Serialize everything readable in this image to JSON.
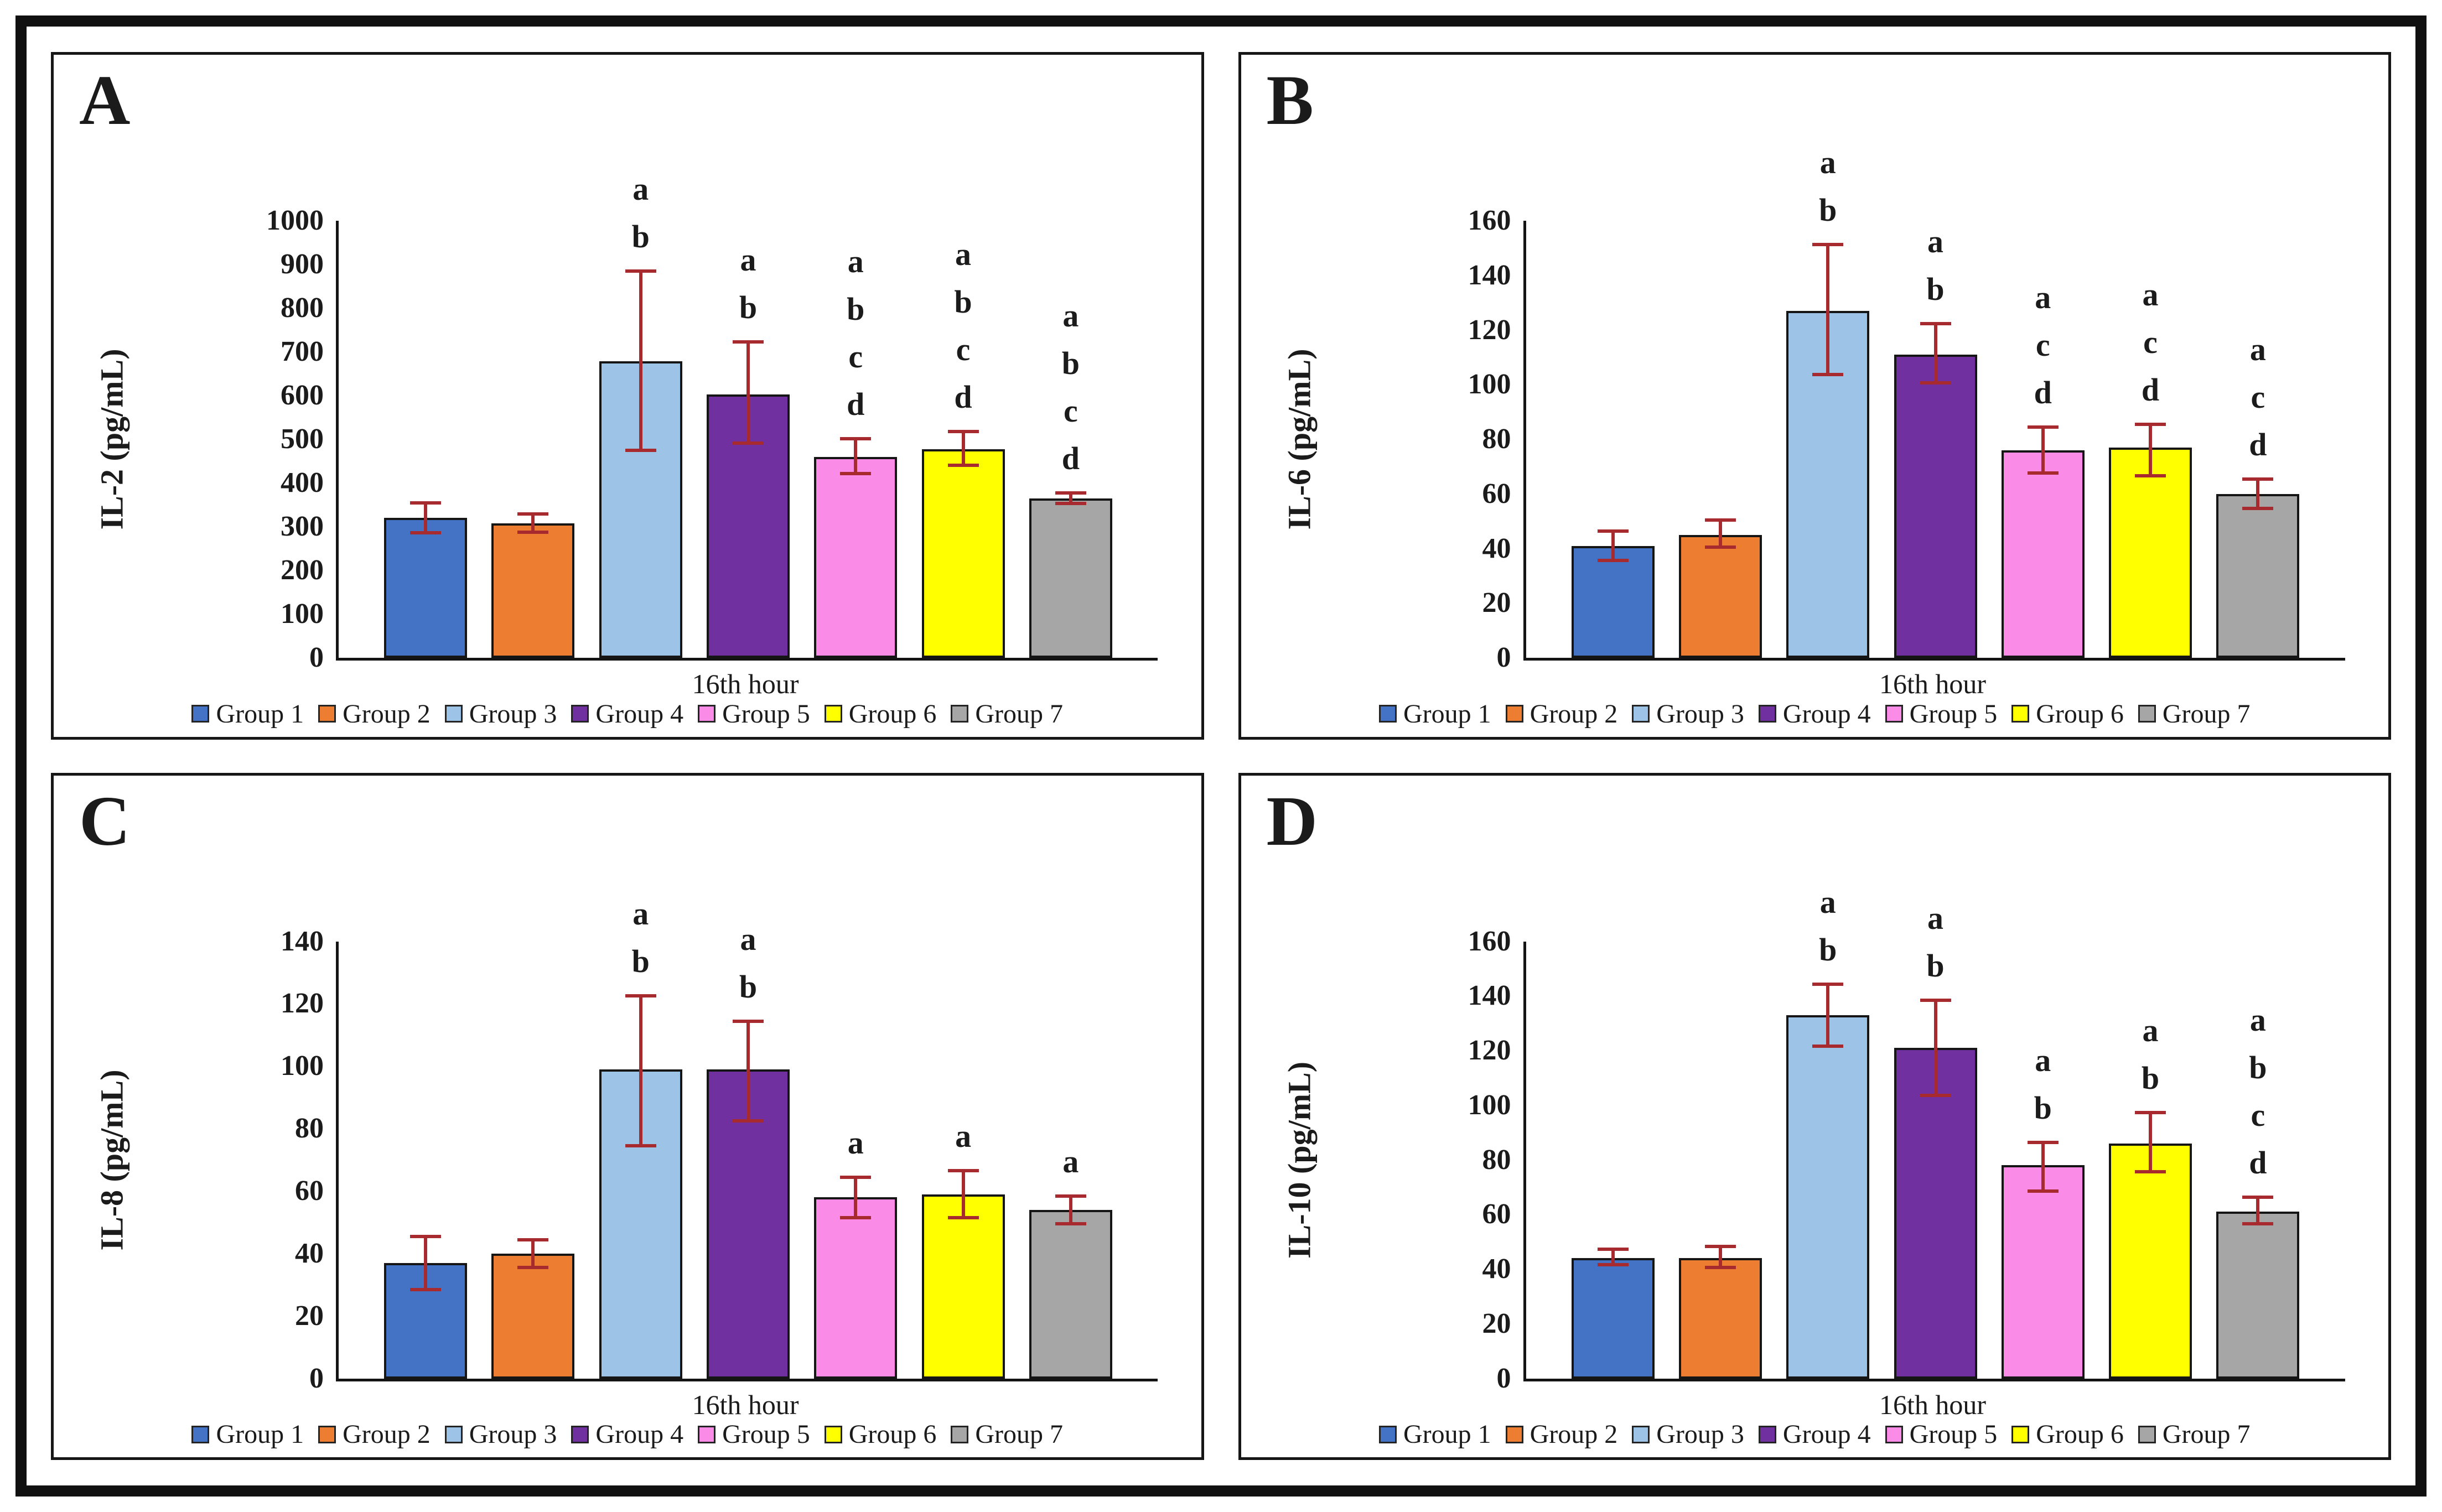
{
  "series_colors": [
    "#4472C4",
    "#ED7D31",
    "#9DC3E6",
    "#7030A0",
    "#FA8CE8",
    "#FFFF00",
    "#A6A6A6"
  ],
  "error_bar_color": "#A62A2E",
  "bar_border_color": "#151515",
  "chart_data": [
    {
      "type": "bar",
      "panel": "A",
      "ylabel": "IL-2 (pg/mL)",
      "xlabel": "16th hour",
      "ylim": [
        0,
        1000
      ],
      "ytick_step": 100,
      "grid": false,
      "legend_position": "bottom",
      "categories": [
        "Group 1",
        "Group 2",
        "Group 3",
        "Group 4",
        "Group 5",
        "Group 6",
        "Group 7"
      ],
      "values": [
        320,
        308,
        678,
        602,
        460,
        477,
        364
      ],
      "error_low": [
        282,
        283,
        471,
        487,
        418,
        437,
        349
      ],
      "error_high": [
        358,
        333,
        889,
        726,
        505,
        521,
        381
      ],
      "sig_letters": [
        [],
        [],
        [
          "a",
          "b"
        ],
        [
          "a",
          "b"
        ],
        [
          "a",
          "b",
          "c",
          "d"
        ],
        [
          "a",
          "b",
          "c",
          "d"
        ],
        [
          "a",
          "b",
          "c",
          "d"
        ]
      ]
    },
    {
      "type": "bar",
      "panel": "B",
      "ylabel": "IL-6 (pg/mL)",
      "xlabel": "16th hour",
      "ylim": [
        0,
        160
      ],
      "ytick_step": 20,
      "grid": false,
      "legend_position": "bottom",
      "categories": [
        "Group 1",
        "Group 2",
        "Group 3",
        "Group 4",
        "Group 5",
        "Group 6",
        "Group 7"
      ],
      "values": [
        41,
        45,
        127,
        111,
        76,
        77,
        60
      ],
      "error_low": [
        35,
        40,
        103,
        100,
        67,
        66,
        54
      ],
      "error_high": [
        47,
        51,
        152,
        123,
        85,
        86,
        66
      ],
      "sig_letters": [
        [],
        [],
        [
          "a",
          "b"
        ],
        [
          "a",
          "b"
        ],
        [
          "a",
          "c",
          "d"
        ],
        [
          "a",
          "c",
          "d"
        ],
        [
          "a",
          "c",
          "d"
        ]
      ]
    },
    {
      "type": "bar",
      "panel": "C",
      "ylabel": "IL-8 (pg/mL)",
      "xlabel": "16th hour",
      "ylim": [
        0,
        140
      ],
      "ytick_step": 20,
      "grid": false,
      "legend_position": "bottom",
      "categories": [
        "Group 1",
        "Group 2",
        "Group 3",
        "Group 4",
        "Group 5",
        "Group 6",
        "Group 7"
      ],
      "values": [
        37,
        40,
        99,
        99,
        58,
        59,
        54
      ],
      "error_low": [
        28,
        35,
        74,
        82,
        51,
        51,
        49
      ],
      "error_high": [
        46,
        45,
        123,
        115,
        65,
        67,
        59
      ],
      "sig_letters": [
        [],
        [],
        [
          "a",
          "b"
        ],
        [
          "a",
          "b"
        ],
        [
          "a"
        ],
        [
          "a"
        ],
        [
          "a"
        ]
      ]
    },
    {
      "type": "bar",
      "panel": "D",
      "ylabel": "IL-10 (pg/mL)",
      "xlabel": "16th hour",
      "ylim": [
        0,
        160
      ],
      "ytick_step": 20,
      "grid": false,
      "legend_position": "bottom",
      "categories": [
        "Group 1",
        "Group 2",
        "Group 3",
        "Group 4",
        "Group 5",
        "Group 6",
        "Group 7"
      ],
      "values": [
        44,
        44,
        133,
        121,
        78,
        86,
        61
      ],
      "error_low": [
        41,
        40,
        121,
        103,
        68,
        75,
        56
      ],
      "error_high": [
        48,
        49,
        145,
        139,
        87,
        98,
        67
      ],
      "sig_letters": [
        [],
        [],
        [
          "a",
          "b"
        ],
        [
          "a",
          "b"
        ],
        [
          "a",
          "b"
        ],
        [
          "a",
          "b"
        ],
        [
          "a",
          "b",
          "c",
          "d"
        ]
      ]
    }
  ]
}
